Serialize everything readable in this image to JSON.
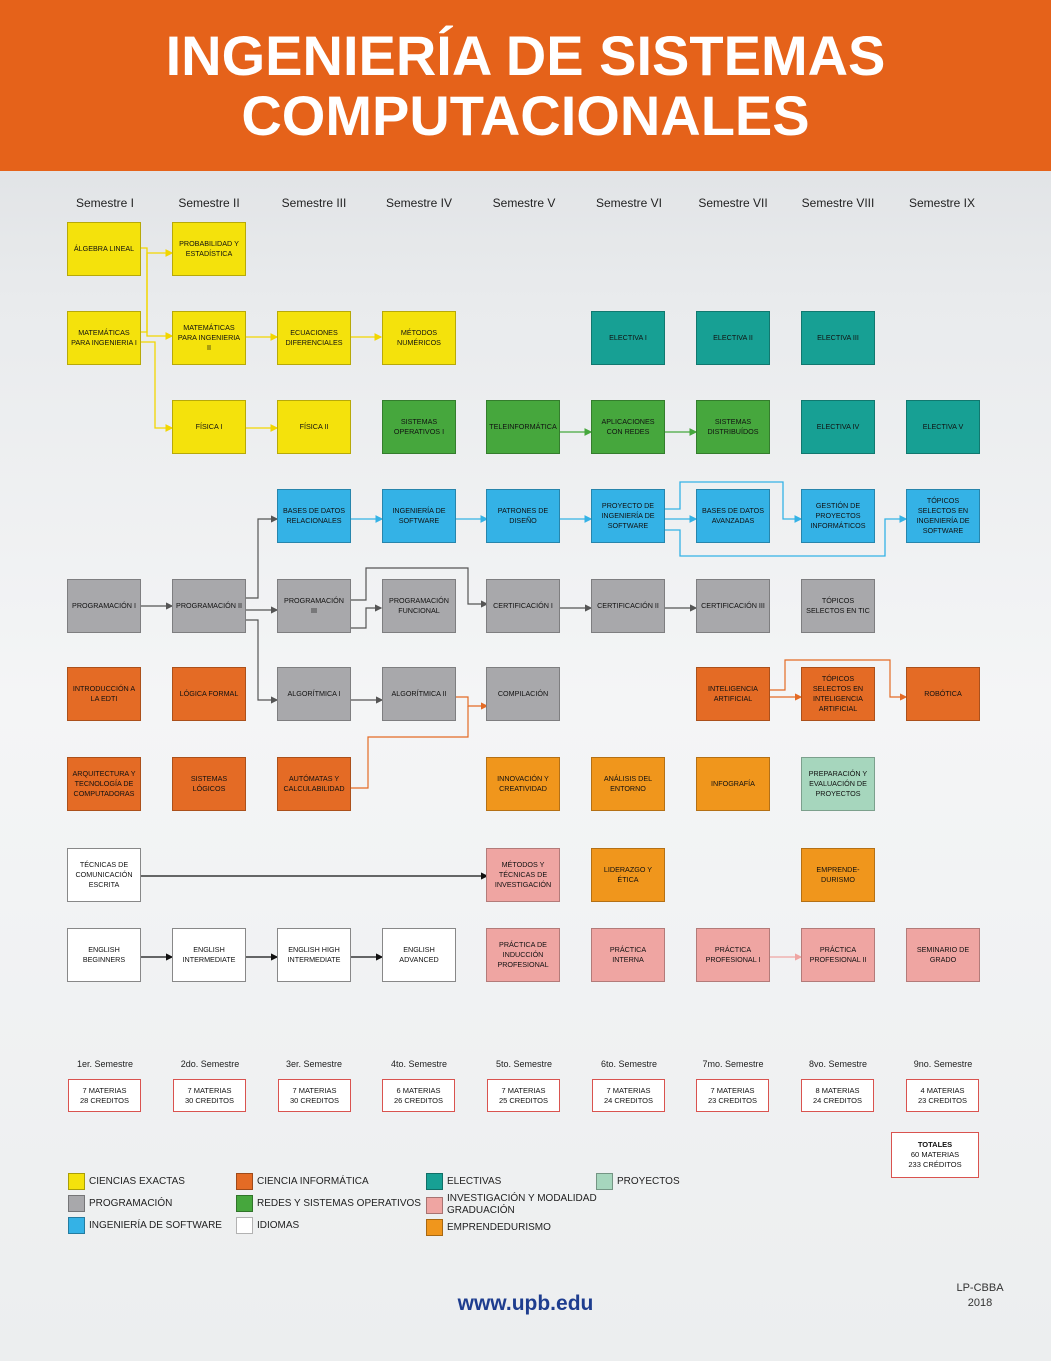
{
  "title": {
    "line1": "INGENIERÍA DE SISTEMAS",
    "line2": "COMPUTACIONALES"
  },
  "semesters": [
    "Semestre I",
    "Semestre II",
    "Semestre III",
    "Semestre IV",
    "Semestre V",
    "Semestre VI",
    "Semestre VII",
    "Semestre VIII",
    "Semestre IX"
  ],
  "subjects": {
    "algebra": "ÁLGEBRA LINEAL",
    "probabilidad": "PROBABILIDAD Y ESTADÍSTICA",
    "mat1": "MATEMÁTICAS PARA INGENIERIA I",
    "mat2": "MATEMÁTICAS PARA INGENIERIA II",
    "ecuaciones": "ECUACIONES DIFERENCIALES",
    "metodos": "MÉTODOS NUMÉRICOS",
    "electiva1": "ELECTIVA I",
    "electiva2": "ELECTIVA II",
    "electiva3": "ELECTIVA III",
    "fisica1": "FÍSICA I",
    "fisica2": "FÍSICA II",
    "so1": "SISTEMAS OPERATIVOS I",
    "teleinf": "TELEINFORMÁTICA",
    "aplired": "APLICACIONES CON REDES",
    "sisdist": "SISTEMAS DISTRIBUÍDOS",
    "electiva4": "ELECTIVA IV",
    "electiva5": "ELECTIVA V",
    "bdrel": "BASES DE DATOS RELACIONALES",
    "ingsoft": "INGENIERÍA DE SOFTWARE",
    "patrones": "PATRONES DE DISEÑO",
    "proyingsoft": "PROYECTO DE INGENIERÍA DE SOFTWARE",
    "bdavanz": "BASES DE DATOS AVANZADAS",
    "gestproy": "GESTIÓN DE PROYECTOS INFORMÁTICOS",
    "topsoft": "TÓPICOS SELECTOS EN INGENIERÍA DE SOFTWARE",
    "prog1": "PROGRAMACIÓN I",
    "prog2": "PROGRAMACIÓN II",
    "prog3": "PROGRAMACIÓN III",
    "progfunc": "PROGRAMACIÓN FUNCIONAL",
    "cert1": "CERTIFICACIÓN I",
    "cert2": "CERTIFICACIÓN II",
    "cert3": "CERTIFICACIÓN III",
    "toptic": "TÓPICOS SELECTOS EN TIC",
    "intro": "INTRODUCCIÓN A LA EDTI",
    "logica": "LÓGICA FORMAL",
    "algo1": "ALGORÍTMICA I",
    "algo2": "ALGORÍTMICA II",
    "compil": "COMPILACIÓN",
    "ia": "INTELIGENCIA ARTIFICIAL",
    "topia": "TÓPICOS SELECTOS EN INTELIGENCIA ARTIFICIAL",
    "robotica": "ROBÓTICA",
    "arq": "ARQUITECTURA Y TECNOLOGÍA DE COMPUTADORAS",
    "sislog": "SISTEMAS LÓGICOS",
    "automatas": "AUTÓMATAS Y CALCULABILIDAD",
    "innov": "INNOVACIÓN Y CREATIVIDAD",
    "analisis": "ANÁLISIS DEL ENTORNO",
    "infografia": "INFOGRAFÍA",
    "preparacion": "PREPARACIÓN Y EVALUACIÓN DE PROYECTOS",
    "tecnicas": "TÉCNICAS DE COMUNICACIÓN ESCRITA",
    "metinv": "MÉTODOS Y TÉCNICAS DE INVESTIGACIÓN",
    "liderazgo": "LIDERAZGO Y ÉTICA",
    "emprende": "EMPRENDE- DURISMO",
    "eng1": "ENGLISH BEGINNERS",
    "eng2": "ENGLISH INTERMEDIATE",
    "eng3": "ENGLISH HIGH INTERMEDIATE",
    "eng4": "ENGLISH ADVANCED",
    "practind": "PRÁCTICA DE INDUCCIÓN PROFESIONAL",
    "practint": "PRÁCTICA INTERNA",
    "practprof1": "PRÁCTICA PROFESIONAL I",
    "practprof2": "PRÁCTICA PROFESIONAL II",
    "seminario": "SEMINARIO DE GRADO"
  },
  "summary": [
    {
      "label": "1er. Semestre",
      "materias": "7 MATERIAS",
      "creditos": "28 CREDITOS"
    },
    {
      "label": "2do. Semestre",
      "materias": "7 MATERIAS",
      "creditos": "30 CREDITOS"
    },
    {
      "label": "3er. Semestre",
      "materias": "7 MATERIAS",
      "creditos": "30 CREDITOS"
    },
    {
      "label": "4to. Semestre",
      "materias": "6 MATERIAS",
      "creditos": "26 CREDITOS"
    },
    {
      "label": "5to. Semestre",
      "materias": "7 MATERIAS",
      "creditos": "25 CREDITOS"
    },
    {
      "label": "6to. Semestre",
      "materias": "7 MATERIAS",
      "creditos": "24 CREDITOS"
    },
    {
      "label": "7mo. Semestre",
      "materias": "7 MATERIAS",
      "creditos": "23 CREDITOS"
    },
    {
      "label": "8vo. Semestre",
      "materias": "8 MATERIAS",
      "creditos": "24 CREDITOS"
    },
    {
      "label": "9no. Semestre",
      "materias": "4 MATERIAS",
      "creditos": "23 CREDITOS"
    }
  ],
  "totals": {
    "title": "TOTALES",
    "materias": "60 MATERIAS",
    "creditos": "233 CRÉDITOS"
  },
  "legend": {
    "exactas": "CIENCIAS EXACTAS",
    "prog": "PROGRAMACIÓN",
    "soft": "INGENIERÍA DE SOFTWARE",
    "inf": "CIENCIA INFORMÁTICA",
    "redes": "REDES Y SISTEMAS OPERATIVOS",
    "idiomas": "IDIOMAS",
    "electivas": "ELECTIVAS",
    "inv": "INVESTIGACIÓN Y MODALIDAD GRADUACIÓN",
    "emp": "EMPRENDEDURISMO",
    "proy": "PROYECTOS"
  },
  "colors": {
    "header": "#e5621a",
    "exactas": "#f4e20c",
    "prog": "#a8a8ab",
    "soft": "#34b2e6",
    "inf": "#e46b25",
    "redes": "#46a73d",
    "elec": "#17a094",
    "idioma": "#ffffff",
    "inv": "#efa5a2",
    "emp": "#f0961c",
    "proy": "#a6d6bd",
    "url": "#1e3d8f"
  },
  "footer": {
    "url": "www.upb.edu",
    "code_line1": "LP-CBBA",
    "code_line2": "2018"
  }
}
